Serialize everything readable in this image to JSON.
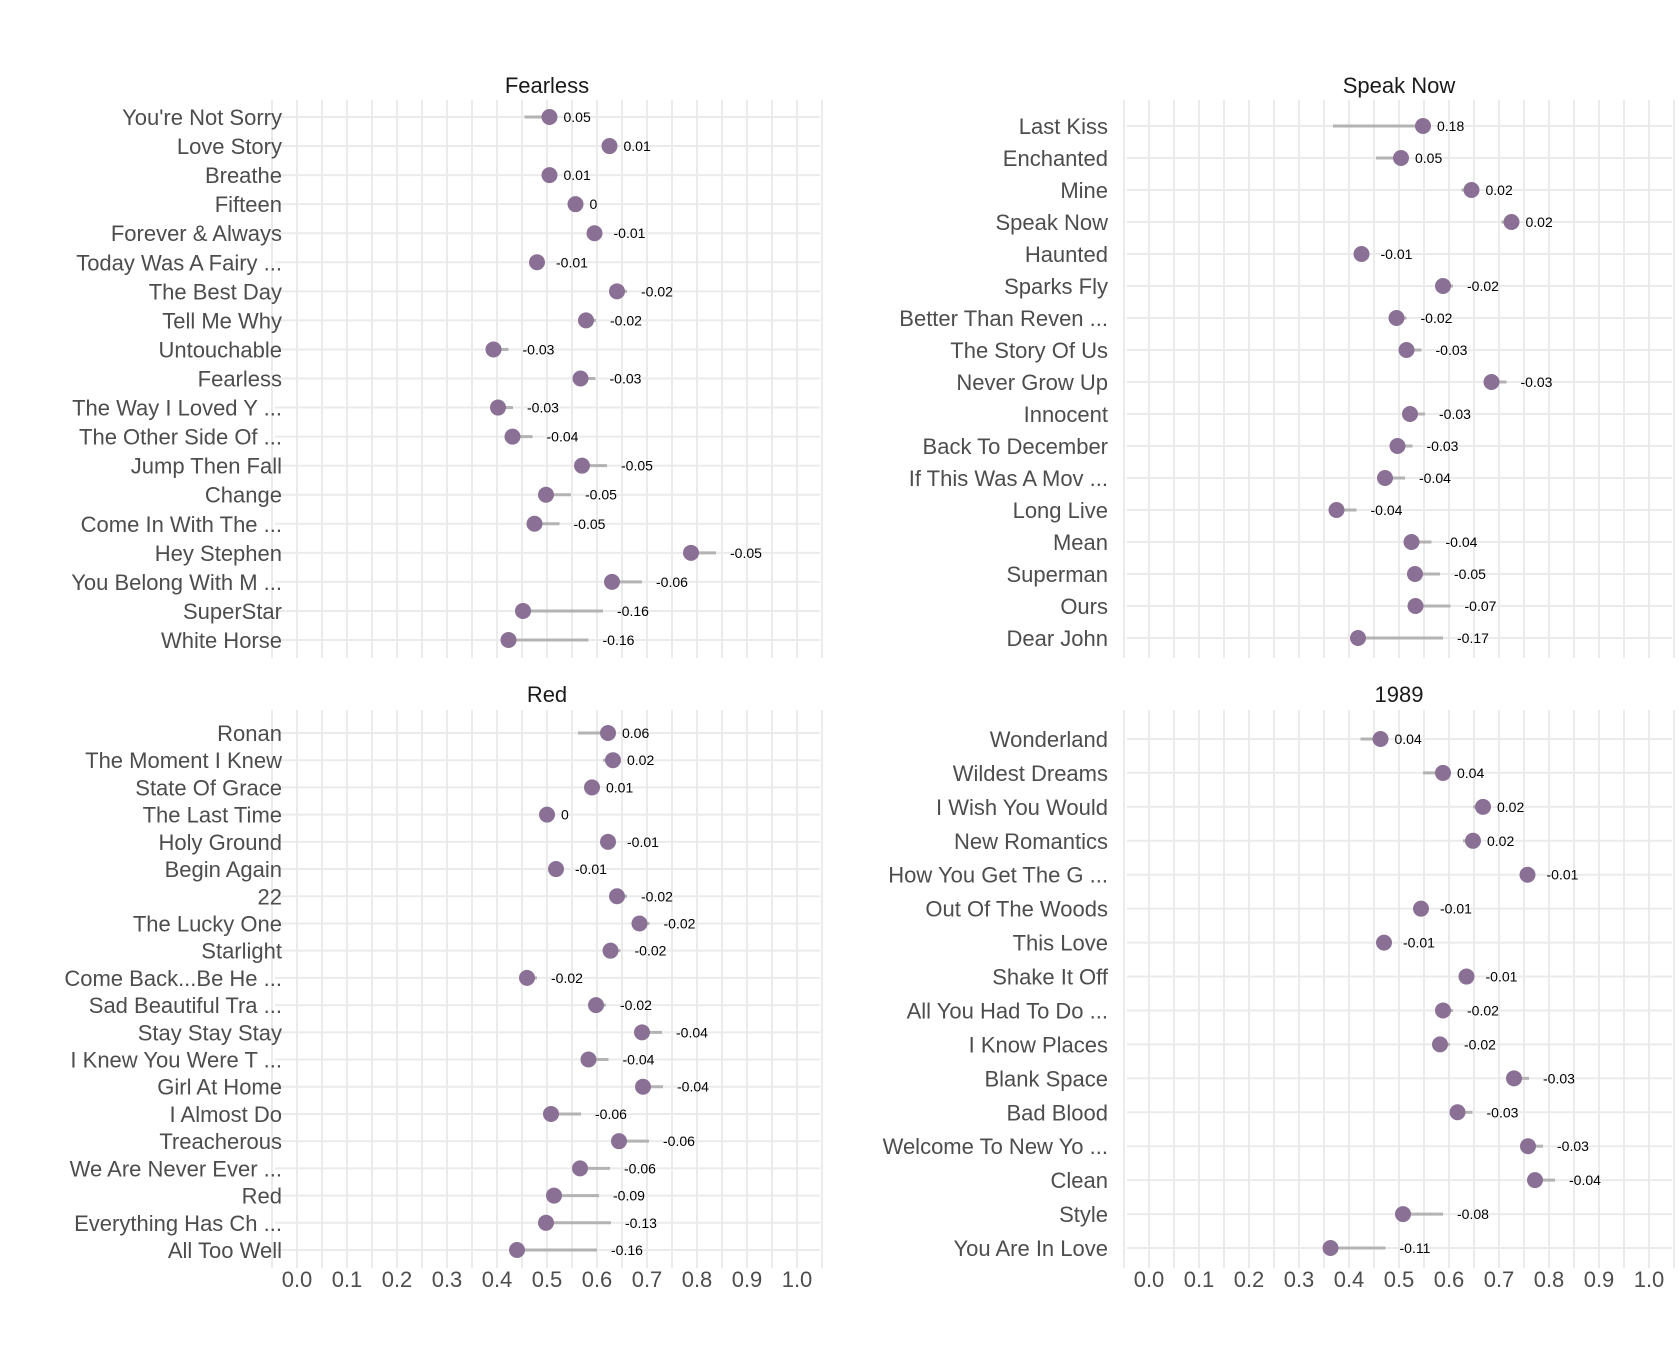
{
  "chart_data": [
    {
      "type": "dumbbell",
      "title": "Fearless",
      "xlim": [
        0.0,
        1.0
      ],
      "x_ticks": [
        "0.0",
        "0.1",
        "0.2",
        "0.3",
        "0.4",
        "0.5",
        "0.6",
        "0.7",
        "0.8",
        "0.9",
        "1.0"
      ],
      "grid": true,
      "point_color": "#8b7096",
      "segment_color": "#b3b3b3",
      "songs": [
        {
          "name": "You're Not Sorry",
          "point": 0.505,
          "ref": 0.455,
          "label": "0.05"
        },
        {
          "name": "Love Story",
          "point": 0.625,
          "ref": 0.615,
          "label": "0.01"
        },
        {
          "name": "Breathe",
          "point": 0.505,
          "ref": 0.495,
          "label": "0.01"
        },
        {
          "name": "Fifteen",
          "point": 0.557,
          "ref": 0.557,
          "label": "0"
        },
        {
          "name": "Forever & Always",
          "point": 0.595,
          "ref": 0.605,
          "label": "-0.01"
        },
        {
          "name": "Today Was A Fairy ...",
          "point": 0.48,
          "ref": 0.49,
          "label": "-0.01"
        },
        {
          "name": "The Best Day",
          "point": 0.64,
          "ref": 0.66,
          "label": "-0.02"
        },
        {
          "name": "Tell Me Why",
          "point": 0.578,
          "ref": 0.598,
          "label": "-0.02"
        },
        {
          "name": "Untouchable",
          "point": 0.393,
          "ref": 0.423,
          "label": "-0.03"
        },
        {
          "name": "Fearless",
          "point": 0.567,
          "ref": 0.597,
          "label": "-0.03"
        },
        {
          "name": "The Way I Loved Y ...",
          "point": 0.402,
          "ref": 0.432,
          "label": "-0.03"
        },
        {
          "name": "The Other Side Of ...",
          "point": 0.431,
          "ref": 0.471,
          "label": "-0.04"
        },
        {
          "name": "Jump Then Fall",
          "point": 0.57,
          "ref": 0.62,
          "label": "-0.05"
        },
        {
          "name": "Change",
          "point": 0.498,
          "ref": 0.548,
          "label": "-0.05"
        },
        {
          "name": "Come In With The  ...",
          "point": 0.475,
          "ref": 0.525,
          "label": "-0.05"
        },
        {
          "name": "Hey Stephen",
          "point": 0.788,
          "ref": 0.838,
          "label": "-0.05"
        },
        {
          "name": "You Belong With M ...",
          "point": 0.63,
          "ref": 0.69,
          "label": "-0.06"
        },
        {
          "name": "SuperStar",
          "point": 0.452,
          "ref": 0.612,
          "label": "-0.16"
        },
        {
          "name": "White Horse",
          "point": 0.423,
          "ref": 0.583,
          "label": "-0.16"
        }
      ]
    },
    {
      "type": "dumbbell",
      "title": "Speak Now",
      "xlim": [
        0.0,
        1.0
      ],
      "x_ticks": [
        "0.0",
        "0.1",
        "0.2",
        "0.3",
        "0.4",
        "0.5",
        "0.6",
        "0.7",
        "0.8",
        "0.9",
        "1.0"
      ],
      "grid": true,
      "point_color": "#8b7096",
      "segment_color": "#b3b3b3",
      "songs": [
        {
          "name": "Last Kiss",
          "point": 0.548,
          "ref": 0.368,
          "label": "0.18"
        },
        {
          "name": "Enchanted",
          "point": 0.504,
          "ref": 0.454,
          "label": "0.05"
        },
        {
          "name": "Mine",
          "point": 0.645,
          "ref": 0.625,
          "label": "0.02"
        },
        {
          "name": "Speak Now",
          "point": 0.725,
          "ref": 0.705,
          "label": "0.02"
        },
        {
          "name": "Haunted",
          "point": 0.425,
          "ref": 0.435,
          "label": "-0.01"
        },
        {
          "name": "Sparks Fly",
          "point": 0.588,
          "ref": 0.608,
          "label": "-0.02"
        },
        {
          "name": "Better Than Reven ...",
          "point": 0.495,
          "ref": 0.515,
          "label": "-0.02"
        },
        {
          "name": "The Story Of Us",
          "point": 0.515,
          "ref": 0.545,
          "label": "-0.03"
        },
        {
          "name": "Never Grow Up",
          "point": 0.685,
          "ref": 0.715,
          "label": "-0.03"
        },
        {
          "name": "Innocent",
          "point": 0.522,
          "ref": 0.552,
          "label": "-0.03"
        },
        {
          "name": "Back To December",
          "point": 0.497,
          "ref": 0.527,
          "label": "-0.03"
        },
        {
          "name": "If This Was A Mov ...",
          "point": 0.472,
          "ref": 0.512,
          "label": "-0.04"
        },
        {
          "name": "Long Live",
          "point": 0.375,
          "ref": 0.415,
          "label": "-0.04"
        },
        {
          "name": "Mean",
          "point": 0.525,
          "ref": 0.565,
          "label": "-0.04"
        },
        {
          "name": "Superman",
          "point": 0.532,
          "ref": 0.582,
          "label": "-0.05"
        },
        {
          "name": "Ours",
          "point": 0.533,
          "ref": 0.603,
          "label": "-0.07"
        },
        {
          "name": "Dear John",
          "point": 0.418,
          "ref": 0.588,
          "label": "-0.17"
        }
      ]
    },
    {
      "type": "dumbbell",
      "title": "Red",
      "xlim": [
        0.0,
        1.0
      ],
      "x_ticks": [
        "0.0",
        "0.1",
        "0.2",
        "0.3",
        "0.4",
        "0.5",
        "0.6",
        "0.7",
        "0.8",
        "0.9",
        "1.0"
      ],
      "grid": true,
      "point_color": "#8b7096",
      "segment_color": "#b3b3b3",
      "songs": [
        {
          "name": "Ronan",
          "point": 0.622,
          "ref": 0.562,
          "label": "0.06"
        },
        {
          "name": "The Moment I Knew",
          "point": 0.632,
          "ref": 0.612,
          "label": "0.02"
        },
        {
          "name": "State Of Grace",
          "point": 0.59,
          "ref": 0.58,
          "label": "0.01"
        },
        {
          "name": "The Last Time",
          "point": 0.5,
          "ref": 0.5,
          "label": "0"
        },
        {
          "name": "Holy Ground",
          "point": 0.622,
          "ref": 0.632,
          "label": "-0.01"
        },
        {
          "name": "Begin Again",
          "point": 0.518,
          "ref": 0.528,
          "label": "-0.01"
        },
        {
          "name": "22",
          "point": 0.64,
          "ref": 0.66,
          "label": "-0.02"
        },
        {
          "name": "The Lucky One",
          "point": 0.685,
          "ref": 0.705,
          "label": "-0.02"
        },
        {
          "name": "Starlight",
          "point": 0.627,
          "ref": 0.647,
          "label": "-0.02"
        },
        {
          "name": "Come Back...Be He ...",
          "point": 0.46,
          "ref": 0.48,
          "label": "-0.02"
        },
        {
          "name": "Sad Beautiful Tra ...",
          "point": 0.598,
          "ref": 0.618,
          "label": "-0.02"
        },
        {
          "name": "Stay Stay Stay",
          "point": 0.69,
          "ref": 0.73,
          "label": "-0.04"
        },
        {
          "name": "I Knew You Were T ...",
          "point": 0.583,
          "ref": 0.623,
          "label": "-0.04"
        },
        {
          "name": "Girl At Home",
          "point": 0.692,
          "ref": 0.732,
          "label": "-0.04"
        },
        {
          "name": "I Almost Do",
          "point": 0.508,
          "ref": 0.568,
          "label": "-0.06"
        },
        {
          "name": "Treacherous",
          "point": 0.644,
          "ref": 0.704,
          "label": "-0.06"
        },
        {
          "name": "We Are Never Ever ...",
          "point": 0.566,
          "ref": 0.626,
          "label": "-0.06"
        },
        {
          "name": "Red",
          "point": 0.514,
          "ref": 0.604,
          "label": "-0.09"
        },
        {
          "name": "Everything Has Ch ...",
          "point": 0.498,
          "ref": 0.628,
          "label": "-0.13"
        },
        {
          "name": "All Too Well",
          "point": 0.44,
          "ref": 0.6,
          "label": "-0.16"
        }
      ]
    },
    {
      "type": "dumbbell",
      "title": "1989",
      "xlim": [
        0.0,
        1.0
      ],
      "x_ticks": [
        "0.0",
        "0.1",
        "0.2",
        "0.3",
        "0.4",
        "0.5",
        "0.6",
        "0.7",
        "0.8",
        "0.9",
        "1.0"
      ],
      "grid": true,
      "point_color": "#8b7096",
      "segment_color": "#b3b3b3",
      "songs": [
        {
          "name": "Wonderland",
          "point": 0.463,
          "ref": 0.423,
          "label": "0.04"
        },
        {
          "name": "Wildest Dreams",
          "point": 0.588,
          "ref": 0.548,
          "label": "0.04"
        },
        {
          "name": "I Wish You Would",
          "point": 0.668,
          "ref": 0.648,
          "label": "0.02"
        },
        {
          "name": "New Romantics",
          "point": 0.648,
          "ref": 0.628,
          "label": "0.02"
        },
        {
          "name": "How You Get The G ...",
          "point": 0.757,
          "ref": 0.767,
          "label": "-0.01"
        },
        {
          "name": "Out Of The Woods",
          "point": 0.544,
          "ref": 0.554,
          "label": "-0.01"
        },
        {
          "name": "This Love",
          "point": 0.47,
          "ref": 0.48,
          "label": "-0.01"
        },
        {
          "name": "Shake It Off",
          "point": 0.635,
          "ref": 0.645,
          "label": "-0.01"
        },
        {
          "name": "All You Had To Do ...",
          "point": 0.588,
          "ref": 0.608,
          "label": "-0.02"
        },
        {
          "name": "I Know Places",
          "point": 0.582,
          "ref": 0.602,
          "label": "-0.02"
        },
        {
          "name": "Blank Space",
          "point": 0.73,
          "ref": 0.76,
          "label": "-0.03"
        },
        {
          "name": "Bad Blood",
          "point": 0.617,
          "ref": 0.647,
          "label": "-0.03"
        },
        {
          "name": "Welcome To New Yo ...",
          "point": 0.758,
          "ref": 0.788,
          "label": "-0.03"
        },
        {
          "name": "Clean",
          "point": 0.772,
          "ref": 0.812,
          "label": "-0.04"
        },
        {
          "name": "Style",
          "point": 0.508,
          "ref": 0.588,
          "label": "-0.08"
        },
        {
          "name": "You Are In Love",
          "point": 0.363,
          "ref": 0.473,
          "label": "-0.11"
        }
      ]
    }
  ]
}
